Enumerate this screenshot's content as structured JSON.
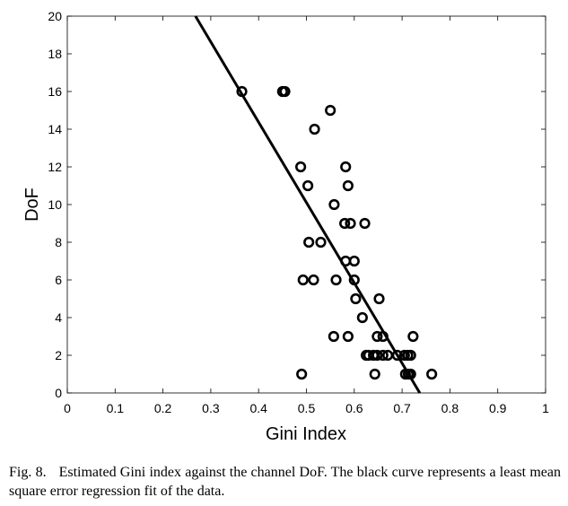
{
  "caption": {
    "label": "Fig. 8.",
    "text": "Estimated Gini index against the channel DoF. The black curve represents a least mean square error regression fit of the data."
  },
  "chart_data": {
    "type": "scatter",
    "xlabel": "Gini Index",
    "ylabel": "DoF",
    "xlim": [
      0,
      1
    ],
    "ylim": [
      0,
      20
    ],
    "xticks": [
      "0",
      "0.1",
      "0.2",
      "0.3",
      "0.4",
      "0.5",
      "0.6",
      "0.7",
      "0.8",
      "0.9",
      "1"
    ],
    "yticks": [
      "0",
      "2",
      "4",
      "6",
      "8",
      "10",
      "12",
      "14",
      "16",
      "18",
      "20"
    ],
    "grid": false,
    "marker": "open-circle",
    "points": [
      [
        0.365,
        16
      ],
      [
        0.45,
        16
      ],
      [
        0.455,
        16
      ],
      [
        0.55,
        15
      ],
      [
        0.517,
        14
      ],
      [
        0.488,
        12
      ],
      [
        0.582,
        12
      ],
      [
        0.503,
        11
      ],
      [
        0.587,
        11
      ],
      [
        0.558,
        10
      ],
      [
        0.58,
        9
      ],
      [
        0.592,
        9
      ],
      [
        0.622,
        9
      ],
      [
        0.505,
        8
      ],
      [
        0.53,
        8
      ],
      [
        0.582,
        7
      ],
      [
        0.6,
        7
      ],
      [
        0.493,
        6
      ],
      [
        0.515,
        6
      ],
      [
        0.562,
        6
      ],
      [
        0.6,
        6
      ],
      [
        0.603,
        5
      ],
      [
        0.652,
        5
      ],
      [
        0.617,
        4
      ],
      [
        0.557,
        3
      ],
      [
        0.587,
        3
      ],
      [
        0.648,
        3
      ],
      [
        0.66,
        3
      ],
      [
        0.723,
        3
      ],
      [
        0.625,
        2
      ],
      [
        0.63,
        2
      ],
      [
        0.64,
        2
      ],
      [
        0.648,
        2
      ],
      [
        0.66,
        2
      ],
      [
        0.67,
        2
      ],
      [
        0.69,
        2
      ],
      [
        0.705,
        2
      ],
      [
        0.712,
        2
      ],
      [
        0.718,
        2
      ],
      [
        0.49,
        1
      ],
      [
        0.643,
        1
      ],
      [
        0.707,
        1
      ],
      [
        0.713,
        1
      ],
      [
        0.718,
        1
      ],
      [
        0.762,
        1
      ]
    ],
    "fit_line": {
      "x": [
        0.268,
        0.737
      ],
      "y": [
        20,
        0
      ]
    }
  }
}
